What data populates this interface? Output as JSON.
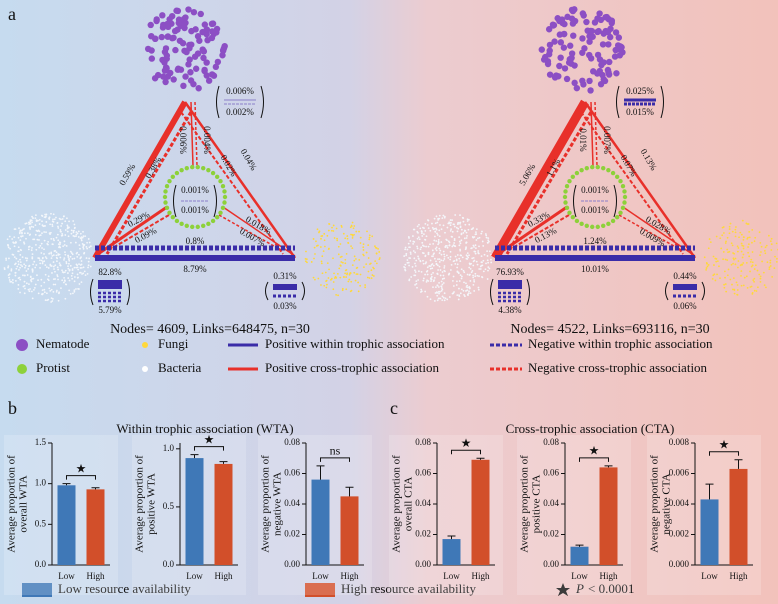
{
  "panels": {
    "a": "a",
    "b": "b",
    "c": "c"
  },
  "networks": [
    {
      "nematode": [
        "0.006%",
        "0.002%"
      ],
      "nem_bac": [
        "0.59%",
        "0.38%"
      ],
      "nem_pro": [
        "0.006%",
        "0.004%"
      ],
      "nem_fun": [
        "0.04%",
        "0.02%"
      ],
      "protist": [
        "0.001%",
        "0.001%"
      ],
      "pro_bac": [
        "0.29%",
        "0.09%"
      ],
      "pro_fun": [
        "0.018%",
        "0.007%"
      ],
      "bac_fun": [
        "0.8%",
        "8.79%"
      ],
      "bacteria": [
        "82.8%",
        "5.79%"
      ],
      "fungi": [
        "0.31%",
        "0.03%"
      ],
      "stats": "Nodes= 4609, Links=648475, n=30"
    },
    {
      "nematode": [
        "0.025%",
        "0.015%"
      ],
      "nem_bac": [
        "5.06%",
        "1.1%"
      ],
      "nem_pro": [
        "0.01%",
        "0.007%"
      ],
      "nem_fun": [
        "0.13%",
        "0.07%"
      ],
      "protist": [
        "0.001%",
        "0.001%"
      ],
      "pro_bac": [
        "0.33%",
        "0.13%"
      ],
      "pro_fun": [
        "0.028%",
        "0.009%"
      ],
      "bac_fun": [
        "1.24%",
        "10.01%"
      ],
      "bacteria": [
        "76.93%",
        "4.38%"
      ],
      "fungi": [
        "0.44%",
        "0.06%"
      ],
      "stats": "Nodes= 4522, Links=693116, n=30"
    }
  ],
  "legend": {
    "nematode": "Nematode",
    "fungi": "Fungi",
    "pos_within": "Positive within trophic association",
    "neg_within": "Negative within trophic association",
    "protist": "Protist",
    "bacteria": "Bacteria",
    "pos_cross": "Positive cross-trophic association",
    "neg_cross": "Negative cross-trophic association"
  },
  "group_titles": [
    "Within trophic association (WTA)",
    "Cross-trophic association (CTA)"
  ],
  "bottom_legend": {
    "low": "Low resource availability",
    "low_color": "#3f78b7",
    "high": "High resource availability",
    "high_color": "#d24f2a",
    "p": "P",
    "p_rest": "< 0.0001"
  },
  "chart_data": [
    {
      "type": "bar",
      "ylabel": [
        "Average proportion of",
        "overall WTA"
      ],
      "categories": [
        "Low",
        "High"
      ],
      "values": [
        0.98,
        0.93
      ],
      "errors": [
        0.02,
        0.02
      ],
      "colors": [
        "#3f78b7",
        "#d24f2a"
      ],
      "ylim": [
        0,
        1.5
      ],
      "yticks": [
        {
          "value": 0,
          "label": "0.0"
        },
        0.5,
        {
          "value": 1,
          "label": "1.0"
        },
        1.5
      ],
      "significance": "★"
    },
    {
      "type": "bar",
      "ylabel": [
        "Average proportion of",
        "positive WTA"
      ],
      "categories": [
        "Low",
        "High"
      ],
      "values": [
        0.92,
        0.87
      ],
      "errors": [
        0.03,
        0.02
      ],
      "colors": [
        "#3f78b7",
        "#d24f2a"
      ],
      "ylim": [
        0,
        1.05
      ],
      "yticks": [
        {
          "value": 0,
          "label": "0.0"
        },
        0.5,
        {
          "value": 1,
          "label": "1.0"
        }
      ],
      "significance": "★"
    },
    {
      "type": "bar",
      "ylabel": [
        "Average proportion of",
        "negative WTA"
      ],
      "categories": [
        "Low",
        "High"
      ],
      "values": [
        0.056,
        0.045
      ],
      "errors": [
        0.009,
        0.006
      ],
      "colors": [
        "#3f78b7",
        "#d24f2a"
      ],
      "ylim": [
        0,
        0.08
      ],
      "yticks": [
        {
          "value": 0,
          "label": "0.00"
        },
        0.02,
        0.04,
        0.06,
        0.08
      ],
      "significance": "ns"
    },
    {
      "type": "bar",
      "ylabel": [
        "Average proportion of",
        "overall CTA"
      ],
      "categories": [
        "Low",
        "High"
      ],
      "values": [
        0.017,
        0.069
      ],
      "errors": [
        0.002,
        0.001
      ],
      "colors": [
        "#3f78b7",
        "#d24f2a"
      ],
      "ylim": [
        0,
        0.08
      ],
      "yticks": [
        {
          "value": 0,
          "label": "0.00"
        },
        0.02,
        0.04,
        0.06,
        0.08
      ],
      "significance": "★"
    },
    {
      "type": "bar",
      "ylabel": [
        "Average proportion of",
        "positive CTA"
      ],
      "categories": [
        "Low",
        "High"
      ],
      "values": [
        0.012,
        0.064
      ],
      "errors": [
        0.001,
        0.001
      ],
      "colors": [
        "#3f78b7",
        "#d24f2a"
      ],
      "ylim": [
        0,
        0.08
      ],
      "yticks": [
        {
          "value": 0,
          "label": "0.00"
        },
        0.02,
        0.04,
        0.06,
        0.08
      ],
      "significance": "★"
    },
    {
      "type": "bar",
      "ylabel": [
        "Average proportion of",
        "negative CTA"
      ],
      "categories": [
        "Low",
        "High"
      ],
      "values": [
        0.0043,
        0.0063
      ],
      "errors": [
        0.001,
        0.0006
      ],
      "colors": [
        "#3f78b7",
        "#d24f2a"
      ],
      "ylim": [
        0,
        0.008
      ],
      "yticks": [
        {
          "value": 0,
          "label": "0.000"
        },
        0.002,
        0.004,
        0.006,
        0.008
      ],
      "significance": "★"
    }
  ]
}
